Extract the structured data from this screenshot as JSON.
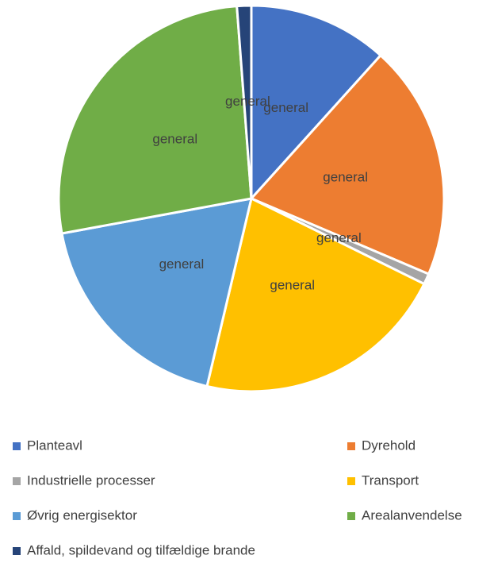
{
  "chart_data": {
    "type": "pie",
    "categories": [
      "Planteavl",
      "Dyrehold",
      "Industrielle processer",
      "Transport",
      "Øvrig energisektor",
      "Arealanvendelse",
      "Affald, spildevand og tilfældige brande"
    ],
    "values": [
      11.7,
      19.7,
      0.9,
      21.4,
      18.4,
      26.7,
      1.2
    ],
    "value_labels": [
      "general",
      "general",
      "general",
      "general",
      "general",
      "general",
      "general"
    ],
    "colors": [
      "#4472c4",
      "#ed7d31",
      "#a5a5a5",
      "#ffc000",
      "#5b9bd5",
      "#70ad47",
      "#264478"
    ],
    "legend": "bottom"
  }
}
